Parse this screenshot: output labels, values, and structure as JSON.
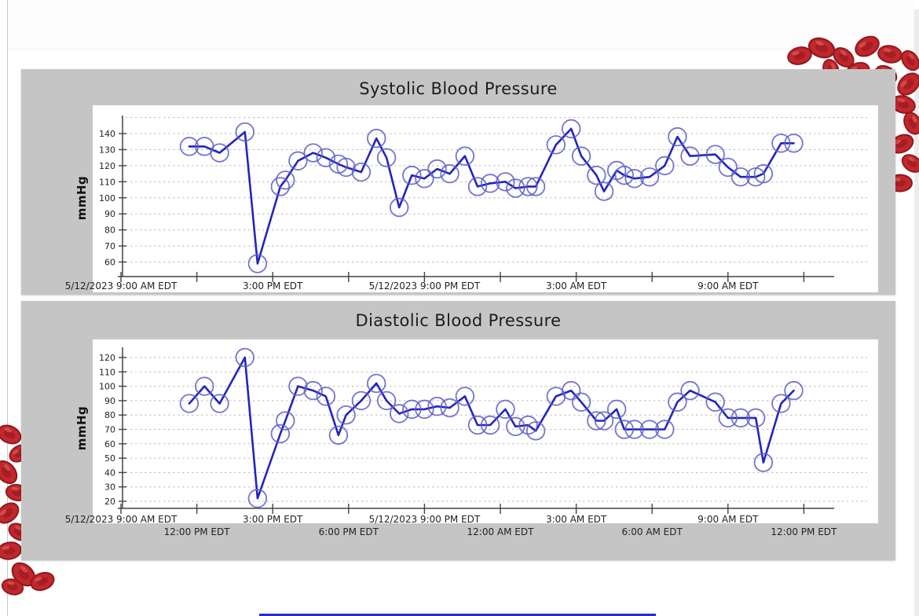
{
  "page": {
    "accent_bottom_line_color": "#2a2ad0",
    "decor": {
      "blood_cell_color": "#c1272d"
    }
  },
  "chart_data": [
    {
      "type": "line",
      "title": "Systolic Blood Pressure",
      "ylabel": "mmHg",
      "series_name": "Systolic blood pressure (mmHg)",
      "y_ticks": [
        60,
        70,
        80,
        90,
        100,
        110,
        120,
        130,
        140
      ],
      "ylim": [
        50,
        148
      ],
      "extra_gridlines": [
        150
      ],
      "grid": true,
      "legend": "none",
      "x_axis": {
        "unit": "hours since 5/12/2023 12:00 AM EDT",
        "start_hour": 9,
        "end_hour": 36,
        "tick_hours": [
          9,
          12,
          15,
          18,
          21,
          24,
          27,
          30,
          33,
          36
        ],
        "labels_row1": [
          {
            "hour": 9,
            "text": "5/12/2023 9:00 AM EDT"
          },
          {
            "hour": 15,
            "text": "3:00 PM EDT"
          },
          {
            "hour": 21,
            "text": "5/12/2023 9:00 PM EDT"
          },
          {
            "hour": 27,
            "text": "3:00 AM EDT"
          },
          {
            "hour": 33,
            "text": "9:00 AM EDT"
          }
        ],
        "labels_row2": []
      },
      "x_hours": [
        11.7,
        12.3,
        12.9,
        13.9,
        14.4,
        15.3,
        15.5,
        16.0,
        16.6,
        17.1,
        17.6,
        17.9,
        18.5,
        19.1,
        19.5,
        20.0,
        20.5,
        21.0,
        21.5,
        22.0,
        22.6,
        23.1,
        23.6,
        24.2,
        24.6,
        25.1,
        25.4,
        26.2,
        26.8,
        27.2,
        27.8,
        28.1,
        28.6,
        28.9,
        29.3,
        29.9,
        30.5,
        31.0,
        31.5,
        32.5,
        33.0,
        33.5,
        34.1,
        34.4,
        35.1,
        35.6
      ],
      "values": [
        132,
        132,
        128,
        141,
        59,
        107,
        111,
        123,
        128,
        125,
        121,
        119,
        116,
        137,
        125,
        94,
        114,
        112,
        118,
        115,
        126,
        107,
        109,
        110,
        106,
        107,
        107,
        133,
        143,
        126,
        114,
        104,
        117,
        114,
        112,
        113,
        120,
        138,
        126,
        127,
        119,
        113,
        113,
        115,
        134,
        134
      ],
      "line_color": "#2424c0",
      "marker": "open-circle",
      "marker_color": "#5c5ec4"
    },
    {
      "type": "line",
      "title": "Diastolic Blood Pressure",
      "ylabel": "mmHg",
      "series_name": "Diastolic blood pressure (mmHg)",
      "y_ticks": [
        20,
        30,
        40,
        50,
        60,
        70,
        80,
        90,
        100,
        110,
        120
      ],
      "ylim": [
        15,
        126
      ],
      "extra_gridlines": [],
      "grid": true,
      "legend": "none",
      "x_axis": {
        "unit": "hours since 5/12/2023 12:00 AM EDT",
        "start_hour": 9,
        "end_hour": 36,
        "tick_hours": [
          9,
          12,
          15,
          18,
          21,
          24,
          27,
          30,
          33,
          36
        ],
        "labels_row1": [
          {
            "hour": 9,
            "text": "5/12/2023 9:00 AM EDT"
          },
          {
            "hour": 15,
            "text": "3:00 PM EDT"
          },
          {
            "hour": 21,
            "text": "5/12/2023 9:00 PM EDT"
          },
          {
            "hour": 27,
            "text": "3:00 AM EDT"
          },
          {
            "hour": 33,
            "text": "9:00 AM EDT"
          }
        ],
        "labels_row2": [
          {
            "hour": 12,
            "text": "12:00 PM EDT"
          },
          {
            "hour": 18,
            "text": "6:00 PM EDT"
          },
          {
            "hour": 24,
            "text": "12:00 AM EDT"
          },
          {
            "hour": 30,
            "text": "6:00 AM EDT"
          },
          {
            "hour": 36,
            "text": "12:00 PM EDT"
          }
        ]
      },
      "x_hours": [
        11.7,
        12.3,
        12.9,
        13.9,
        14.4,
        15.3,
        15.5,
        16.0,
        16.6,
        17.1,
        17.6,
        17.9,
        18.5,
        19.1,
        19.5,
        20.0,
        20.5,
        21.0,
        21.5,
        22.0,
        22.6,
        23.1,
        23.6,
        24.2,
        24.6,
        25.1,
        25.4,
        26.2,
        26.8,
        27.2,
        27.8,
        28.1,
        28.6,
        28.9,
        29.3,
        29.9,
        30.5,
        31.0,
        31.5,
        32.5,
        33.0,
        33.5,
        34.1,
        34.4,
        35.1,
        35.6
      ],
      "values": [
        88,
        100,
        88,
        120,
        22,
        67,
        76,
        100,
        97,
        93,
        66,
        80,
        90,
        102,
        90,
        81,
        84,
        84,
        86,
        85,
        93,
        73,
        73,
        84,
        72,
        73,
        69,
        93,
        97,
        89,
        76,
        76,
        84,
        70,
        70,
        70,
        70,
        89,
        97,
        89,
        78,
        78,
        78,
        47,
        88,
        97
      ],
      "line_color": "#2424c0",
      "marker": "open-circle",
      "marker_color": "#5c5ec4"
    }
  ]
}
